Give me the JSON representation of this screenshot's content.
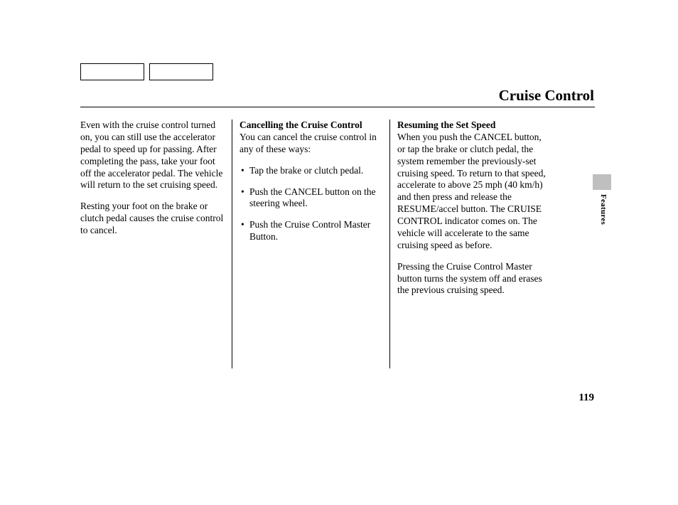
{
  "title": "Cruise Control",
  "page_number": "119",
  "side_label": "Features",
  "colors": {
    "background": "#ffffff",
    "text": "#000000",
    "rule": "#000000",
    "tab": "#bfbfbf",
    "box_border": "#000000"
  },
  "typography": {
    "title_fontsize": 21,
    "body_fontsize": 13.5,
    "pagenum_fontsize": 15,
    "side_label_fontsize": 11,
    "line_height": 1.25,
    "font_family": "Georgia, serif"
  },
  "column1": {
    "p1": "Even with the cruise control turned on, you can still use the accelerator pedal to speed up for passing. After completing the pass, take your foot off the accelerator pedal. The vehicle will return to the set cruising speed.",
    "p2": "Resting your foot on the brake or clutch pedal causes the cruise control to cancel."
  },
  "column2": {
    "heading": "Cancelling the Cruise Control",
    "intro": "You can cancel the cruise control in any of these ways:",
    "bullets": [
      "Tap the brake or clutch pedal.",
      "Push the CANCEL button on the steering wheel.",
      "Push the Cruise Control Master Button."
    ]
  },
  "column3": {
    "heading": "Resuming the Set Speed",
    "p1": "When you push the CANCEL button, or tap the brake or clutch pedal, the system remember the previously-set cruising speed. To return to that speed, accelerate to above 25 mph (40 km/h) and then press and release the RESUME/accel button. The CRUISE CONTROL indicator comes on. The vehicle will accelerate to the same cruising speed as before.",
    "p2": "Pressing the Cruise Control Master button turns the system off and erases the previous cruising speed."
  }
}
